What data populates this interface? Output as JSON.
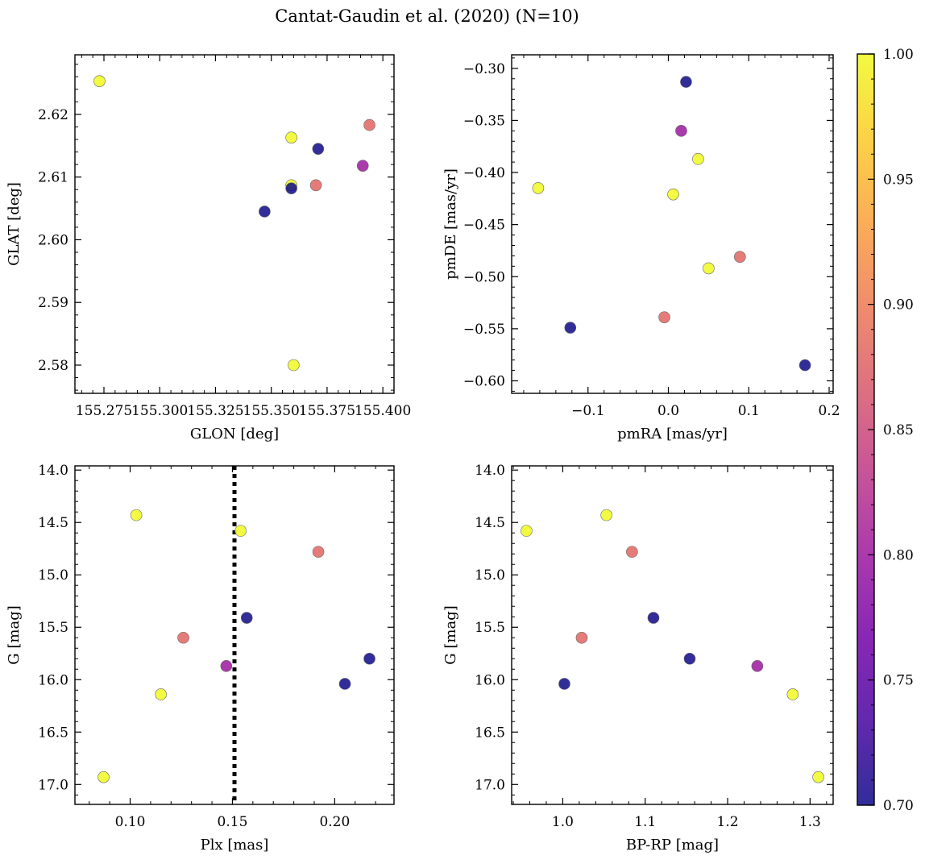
{
  "figure_title": "Cantat-Gaudin et al. (2020) (N=10)",
  "colorbar": {
    "min": 0.7,
    "max": 1.0,
    "ticks": [
      0.7,
      0.75,
      0.8,
      0.85,
      0.9,
      0.95,
      1.0
    ],
    "tick_labels": [
      "0.70",
      "0.75",
      "0.80",
      "0.85",
      "0.90",
      "0.95",
      "1.00"
    ],
    "colormap": "plasma",
    "colormap_stops": [
      "#0d0887",
      "#46039f",
      "#7201a8",
      "#9c179e",
      "#bd3786",
      "#d8576b",
      "#ed7953",
      "#fb9f3a",
      "#fdca26",
      "#f0f921"
    ]
  },
  "chart_data": [
    {
      "id": "glon-glat",
      "type": "scatter",
      "xlabel": "GLON [deg]",
      "ylabel": "GLAT [deg]",
      "xlim": [
        155.262,
        155.405
      ],
      "ylim": [
        2.5755,
        2.6295
      ],
      "xticks": [
        155.275,
        155.3,
        155.325,
        155.35,
        155.375,
        155.4
      ],
      "xtick_labels": [
        "155.275",
        "155.300",
        "155.325",
        "155.350",
        "155.375",
        "155.400"
      ],
      "yticks": [
        2.58,
        2.59,
        2.6,
        2.61,
        2.62
      ],
      "ytick_labels": [
        "2.58",
        "2.59",
        "2.60",
        "2.61",
        "2.62"
      ],
      "x": [
        155.273,
        155.359,
        155.359,
        155.36,
        155.347,
        155.359,
        155.371,
        155.394,
        155.37,
        155.391
      ],
      "y": [
        2.6253,
        2.6163,
        2.6087,
        2.58,
        2.6045,
        2.6082,
        2.6145,
        2.6183,
        2.6087,
        2.6118
      ],
      "prob": [
        1.0,
        1.0,
        1.0,
        1.0,
        0.7,
        0.7,
        0.7,
        0.88,
        0.88,
        0.8
      ]
    },
    {
      "id": "pmra-pmde",
      "type": "scatter",
      "xlabel": "pmRA [mas/yr]",
      "ylabel": "pmDE [mas/yr]",
      "xlim": [
        -0.195,
        0.205
      ],
      "ylim": [
        -0.612,
        -0.287
      ],
      "xticks": [
        -0.1,
        0.0,
        0.1,
        0.2
      ],
      "xtick_labels": [
        "−0.1",
        "0.0",
        "0.1",
        "0.2"
      ],
      "yticks": [
        -0.6,
        -0.55,
        -0.5,
        -0.45,
        -0.4,
        -0.35,
        -0.3
      ],
      "ytick_labels": [
        "−0.60",
        "−0.55",
        "−0.50",
        "−0.45",
        "−0.40",
        "−0.35",
        "−0.30"
      ],
      "x": [
        -0.162,
        0.006,
        0.037,
        0.05,
        -0.122,
        0.022,
        0.17,
        -0.005,
        0.089,
        0.016
      ],
      "y": [
        -0.415,
        -0.421,
        -0.387,
        -0.492,
        -0.549,
        -0.313,
        -0.585,
        -0.539,
        -0.481,
        -0.36
      ],
      "prob": [
        1.0,
        1.0,
        1.0,
        1.0,
        0.7,
        0.7,
        0.7,
        0.88,
        0.88,
        0.8
      ]
    },
    {
      "id": "plx-g",
      "type": "scatter",
      "xlabel": "Plx [mas]",
      "ylabel": "G [mag]",
      "xlim": [
        0.073,
        0.229
      ],
      "ylim": [
        17.19,
        13.96
      ],
      "xticks": [
        0.1,
        0.15,
        0.2
      ],
      "xtick_labels": [
        "0.10",
        "0.15",
        "0.20"
      ],
      "yticks": [
        14.0,
        14.5,
        15.0,
        15.5,
        16.0,
        16.5,
        17.0
      ],
      "ytick_labels": [
        "14.0",
        "14.5",
        "15.0",
        "15.5",
        "16.0",
        "16.5",
        "17.0"
      ],
      "vline": 0.151,
      "x": [
        0.103,
        0.154,
        0.115,
        0.087,
        0.157,
        0.217,
        0.205,
        0.192,
        0.126,
        0.147
      ],
      "y": [
        14.43,
        14.58,
        16.14,
        16.93,
        15.41,
        15.8,
        16.04,
        14.78,
        15.6,
        15.87
      ],
      "prob": [
        1.0,
        1.0,
        1.0,
        1.0,
        0.7,
        0.7,
        0.7,
        0.88,
        0.88,
        0.8
      ]
    },
    {
      "id": "bprp-g",
      "type": "scatter",
      "xlabel": "BP-RP [mag]",
      "ylabel": "G [mag]",
      "xlim": [
        0.938,
        1.328
      ],
      "ylim": [
        17.19,
        13.96
      ],
      "xticks": [
        1.0,
        1.1,
        1.2,
        1.3
      ],
      "xtick_labels": [
        "1.0",
        "1.1",
        "1.2",
        "1.3"
      ],
      "yticks": [
        14.0,
        14.5,
        15.0,
        15.5,
        16.0,
        16.5,
        17.0
      ],
      "ytick_labels": [
        "14.0",
        "14.5",
        "15.0",
        "15.5",
        "16.0",
        "16.5",
        "17.0"
      ],
      "x": [
        1.053,
        0.956,
        1.279,
        1.31,
        1.11,
        1.154,
        1.002,
        1.084,
        1.023,
        1.236
      ],
      "y": [
        14.43,
        14.58,
        16.14,
        16.93,
        15.41,
        15.8,
        16.04,
        14.78,
        15.6,
        15.87
      ],
      "prob": [
        1.0,
        1.0,
        1.0,
        1.0,
        0.7,
        0.7,
        0.7,
        0.88,
        0.88,
        0.8
      ]
    }
  ]
}
